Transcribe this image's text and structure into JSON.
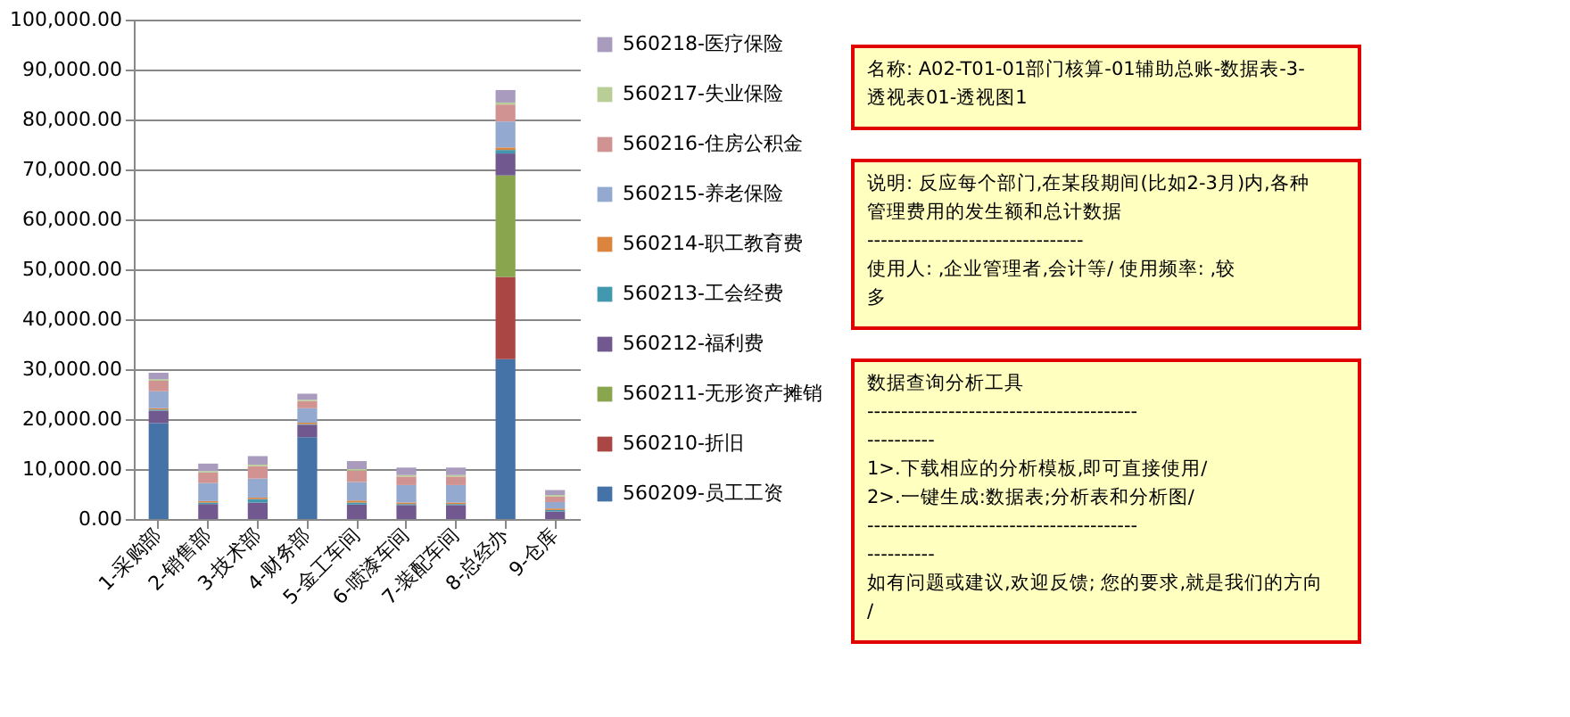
{
  "chart_data": {
    "type": "bar",
    "stacked": true,
    "categories": [
      "1-采购部",
      "2-销售部",
      "3-技术部",
      "4-财务部",
      "5-金工车间",
      "6-喷漆车间",
      "7-装配车间",
      "8-总经办",
      "9-仓库"
    ],
    "series": [
      {
        "name": "560209-员工工资",
        "color": "#4572a7",
        "values": [
          19200,
          null,
          null,
          16400,
          null,
          null,
          null,
          32000,
          null
        ]
      },
      {
        "name": "560210-折旧",
        "color": "#aa4643",
        "values": [
          null,
          null,
          null,
          null,
          null,
          null,
          null,
          16500,
          null
        ]
      },
      {
        "name": "560211-无形资产摊销",
        "color": "#89a54e",
        "values": [
          null,
          null,
          null,
          null,
          null,
          null,
          null,
          20300,
          null
        ]
      },
      {
        "name": "560212-福利费",
        "color": "#71588f",
        "values": [
          2500,
          3000,
          3300,
          2500,
          2900,
          2800,
          2800,
          4400,
          1500
        ]
      },
      {
        "name": "560213-工会经费",
        "color": "#4198af",
        "values": [
          200,
          300,
          700,
          100,
          400,
          200,
          200,
          700,
          300
        ]
      },
      {
        "name": "560214-职工教育费",
        "color": "#db843d",
        "values": [
          300,
          300,
          300,
          300,
          400,
          300,
          300,
          500,
          300
        ]
      },
      {
        "name": "560215-养老保险",
        "color": "#93a9cf",
        "values": [
          3400,
          3600,
          3800,
          2900,
          3700,
          3500,
          3500,
          5200,
          1300
        ]
      },
      {
        "name": "560216-住房公积金",
        "color": "#d19392",
        "values": [
          2100,
          2100,
          2500,
          1400,
          2300,
          1700,
          1700,
          3400,
          1100
        ]
      },
      {
        "name": "560217-失业保险",
        "color": "#b9cd96",
        "values": [
          300,
          300,
          300,
          300,
          300,
          300,
          300,
          400,
          300
        ]
      },
      {
        "name": "560218-医疗保险",
        "color": "#a99bbd",
        "values": [
          1300,
          1500,
          1700,
          1200,
          1600,
          1500,
          1500,
          2500,
          1000
        ]
      }
    ],
    "ylim": [
      0,
      100000
    ],
    "yticks": [
      {
        "value": 0,
        "label": "0.00"
      },
      {
        "value": 10000,
        "label": "10,000.00"
      },
      {
        "value": 20000,
        "label": "20,000.00"
      },
      {
        "value": 30000,
        "label": "30,000.00"
      },
      {
        "value": 40000,
        "label": "40,000.00"
      },
      {
        "value": 50000,
        "label": "50,000.00"
      },
      {
        "value": 60000,
        "label": "60,000.00"
      },
      {
        "value": 70000,
        "label": "70,000.00"
      },
      {
        "value": 80000,
        "label": "80,000.00"
      },
      {
        "value": 90000,
        "label": "90,000.00"
      },
      {
        "value": 100000,
        "label": "100,000.00"
      }
    ],
    "grid": "y",
    "legend": "right",
    "annotations": [
      "名称: A02-T01-01部门核算-01辅助总账-数据表-3-透视表01-透视图1",
      "说明: 反应每个部门,在某段期间(比如2-3月)内,各种管理费用的发生额和总计数据\n--------------------------------\n使用人: ,企业管理者,会计等/      使用频率: ,较多",
      "数据查询分析工具\n--------------------------------------------------\n      1>.下载相应的分析模板,即可直接使用/\n      2>.一键生成:数据表;分析表和分析图/\n--------------------------------------------------\n如有问题或建议,欢迎反馈; 您的要求,就是我们的方向/"
    ]
  }
}
